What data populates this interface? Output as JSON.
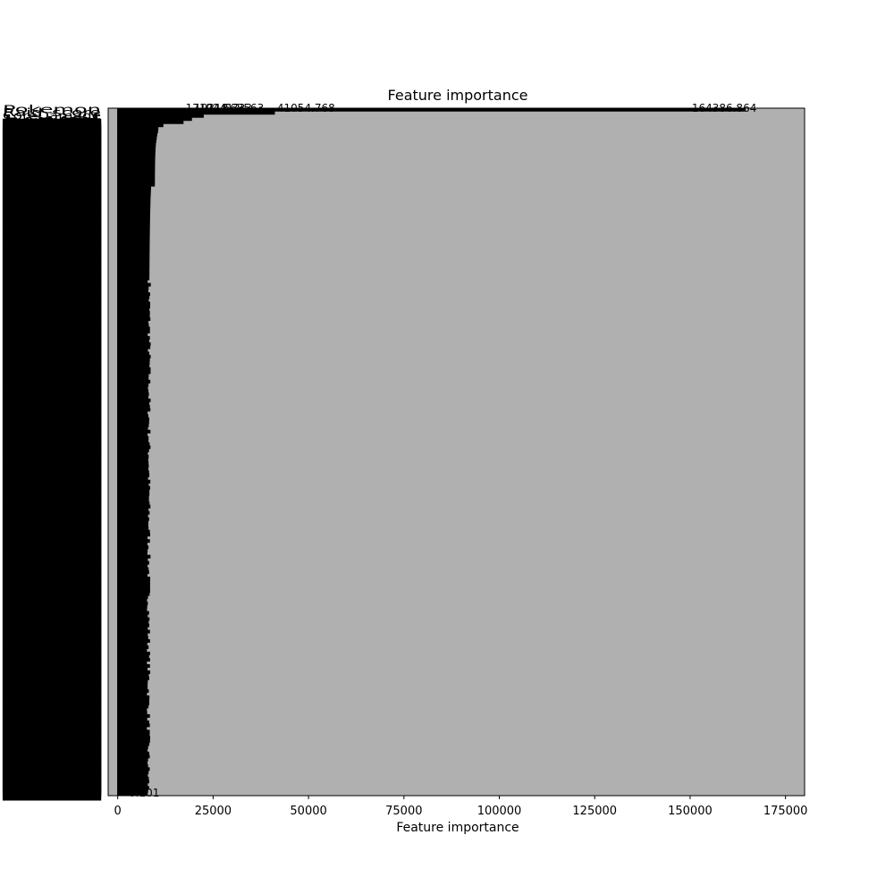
{
  "chart_data": {
    "type": "bar",
    "orientation": "horizontal",
    "title": "Feature importance",
    "xlabel": "Feature importance",
    "ylabel": "",
    "xlim": [
      -2500,
      180000
    ],
    "xticks": [
      0,
      25000,
      50000,
      75000,
      100000,
      125000,
      150000,
      175000
    ],
    "xtick_labels": [
      "0",
      "25000",
      "50000",
      "75000",
      "100000",
      "125000",
      "150000",
      "175000"
    ],
    "grid": true,
    "background_color": "#b0b0b0",
    "bar_color": "#000000",
    "n_features": 220,
    "categories": [
      "Pokemon",
      "Raid_score",
      "CoreDamage",
      "Level",
      "HP"
    ],
    "values": [
      164386.864,
      41054.768,
      22412.563,
      19318.733,
      17104.663
    ],
    "value_labels": [
      "164386.864",
      "41054.768",
      "22412.563",
      "19318.733",
      "17104.663"
    ],
    "tail_values": [
      11820,
      10512,
      10420,
      10230,
      10098,
      9987,
      9870,
      9804,
      9755,
      9722,
      9690,
      9670,
      9655,
      9640,
      9630,
      9620,
      9612,
      9605,
      9600,
      9594,
      8600,
      8560,
      8520,
      8480,
      8450,
      8430,
      8410,
      8390,
      8370,
      8350,
      8335,
      8320,
      8305,
      8290,
      8280,
      8270,
      8260,
      8250,
      8240,
      8230,
      8220,
      8212,
      8205,
      8198,
      8190,
      8183,
      8176,
      8170,
      8164,
      8158
    ],
    "bottom_label": "0.101"
  }
}
